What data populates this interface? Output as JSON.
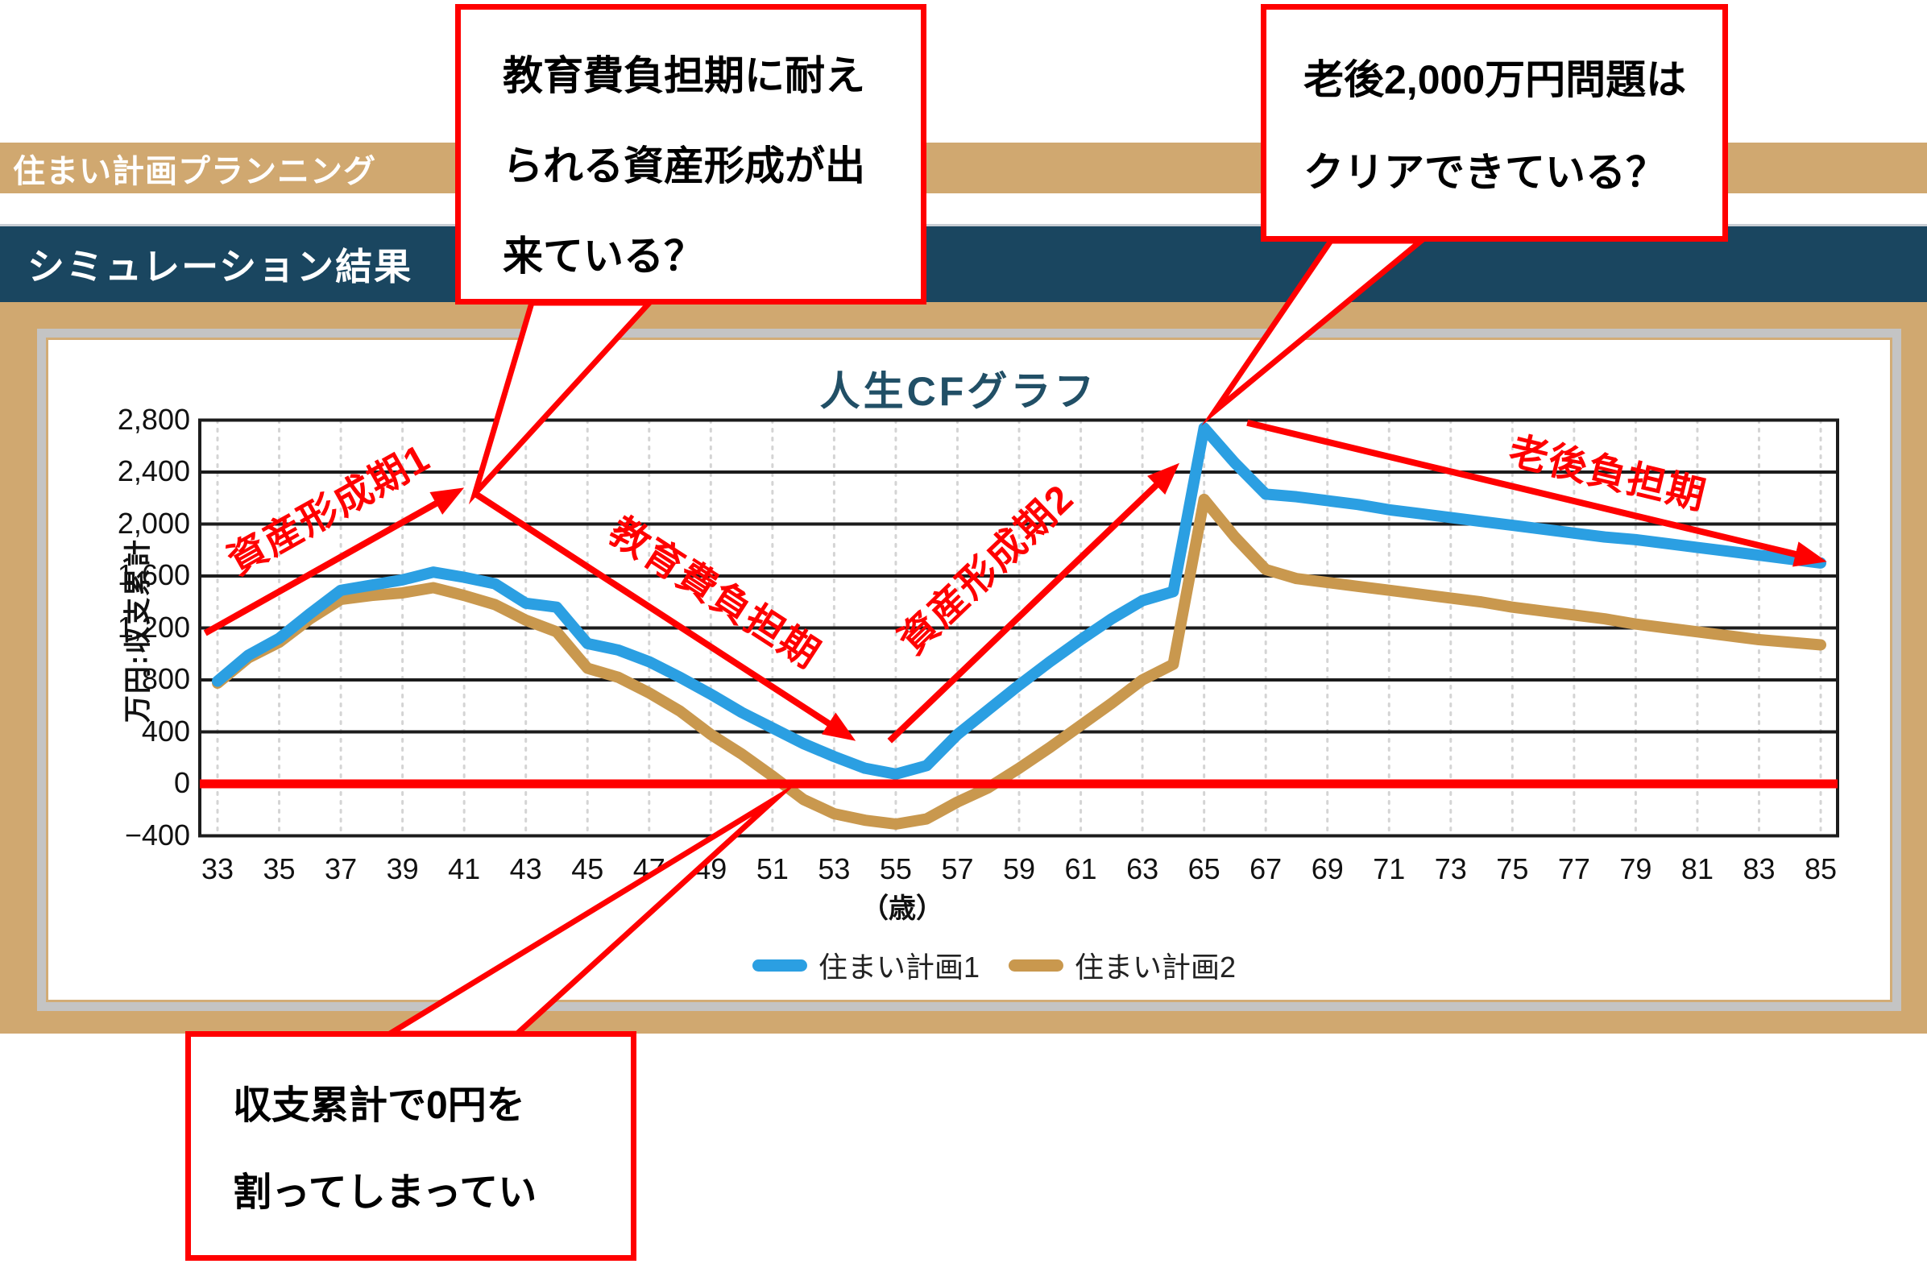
{
  "banners": {
    "app_title": "住まい計画プランニング",
    "section_title": "シミュレーション結果"
  },
  "chart_data": {
    "type": "line",
    "title": "人生CFグラフ",
    "y_axis_title": "万円:収支累計",
    "x_axis_title": "（歳）",
    "xlim": [
      33,
      85
    ],
    "ylim": [
      -400,
      2800
    ],
    "x_ticks": [
      33,
      35,
      37,
      39,
      41,
      43,
      45,
      47,
      49,
      51,
      53,
      55,
      57,
      59,
      61,
      63,
      65,
      67,
      69,
      71,
      73,
      75,
      77,
      79,
      81,
      83,
      85
    ],
    "y_tick_values": [
      2800,
      2400,
      2000,
      1600,
      1200,
      800,
      400,
      0,
      -400
    ],
    "y_tick_labels": [
      "2,800",
      "2,400",
      "2,000",
      "1,600",
      "1,200",
      "800",
      "400",
      "0",
      "−400"
    ],
    "grid": {
      "horizontal": "solid-black",
      "vertical": "dotted-gray"
    },
    "legend_position": "bottom",
    "zero_line_color": "#FF0000",
    "ages": [
      33,
      34,
      35,
      36,
      37,
      38,
      39,
      40,
      41,
      42,
      43,
      44,
      45,
      46,
      47,
      48,
      49,
      50,
      51,
      52,
      53,
      54,
      55,
      56,
      57,
      58,
      59,
      60,
      61,
      62,
      63,
      64,
      65,
      66,
      67,
      68,
      69,
      70,
      71,
      72,
      73,
      74,
      75,
      76,
      77,
      78,
      79,
      80,
      81,
      82,
      83,
      84,
      85
    ],
    "series": [
      {
        "name": "住まい計画1",
        "color": "#2B9FE2",
        "values": [
          790,
          990,
          1120,
          1310,
          1490,
          1530,
          1570,
          1630,
          1590,
          1540,
          1390,
          1360,
          1080,
          1030,
          940,
          820,
          690,
          550,
          430,
          310,
          210,
          120,
          75,
          140,
          380,
          570,
          760,
          940,
          1110,
          1270,
          1410,
          1480,
          2740,
          2470,
          2230,
          2210,
          2180,
          2150,
          2110,
          2080,
          2050,
          2020,
          1990,
          1960,
          1930,
          1900,
          1880,
          1850,
          1820,
          1790,
          1760,
          1730,
          1700
        ]
      },
      {
        "name": "住まい計画2",
        "color": "#C9984E",
        "values": [
          775,
          970,
          1090,
          1270,
          1420,
          1450,
          1470,
          1510,
          1450,
          1380,
          1260,
          1170,
          890,
          820,
          700,
          560,
          380,
          230,
          60,
          -120,
          -230,
          -280,
          -310,
          -270,
          -140,
          -30,
          120,
          280,
          450,
          620,
          800,
          920,
          2190,
          1900,
          1650,
          1580,
          1550,
          1520,
          1490,
          1460,
          1430,
          1400,
          1360,
          1330,
          1300,
          1270,
          1230,
          1200,
          1170,
          1140,
          1110,
          1090,
          1070
        ]
      }
    ]
  },
  "annotations": {
    "phases": [
      {
        "label": "資産形成期1",
        "from": {
          "age": 32.6,
          "value": 1160
        },
        "to": {
          "age": 41.0,
          "value": 2280
        }
      },
      {
        "label": "教育費負担期",
        "from": {
          "age": 41.35,
          "value": 2235
        },
        "to": {
          "age": 53.7,
          "value": 330
        }
      },
      {
        "label": "資産形成期2",
        "from": {
          "age": 54.8,
          "value": 330
        },
        "to": {
          "age": 64.2,
          "value": 2470
        }
      },
      {
        "label": "老後負担期",
        "from": {
          "age": 66.4,
          "value": 2780
        },
        "to": {
          "age": 85.2,
          "value": 1710
        }
      }
    ],
    "callouts": [
      {
        "lines": [
          "教育費負担期に耐え",
          "られる資産形成が出",
          "来ている？"
        ],
        "points_to": {
          "age": 41.35,
          "value": 2235
        }
      },
      {
        "lines": [
          "老後2,000万円問題は",
          "クリアできている？"
        ],
        "points_to": {
          "age": 65.35,
          "value": 2870
        }
      },
      {
        "lines": [
          "収支累計で0円を",
          "割ってしまってい"
        ],
        "points_to": {
          "age": 51.1,
          "value": -115
        }
      }
    ]
  }
}
